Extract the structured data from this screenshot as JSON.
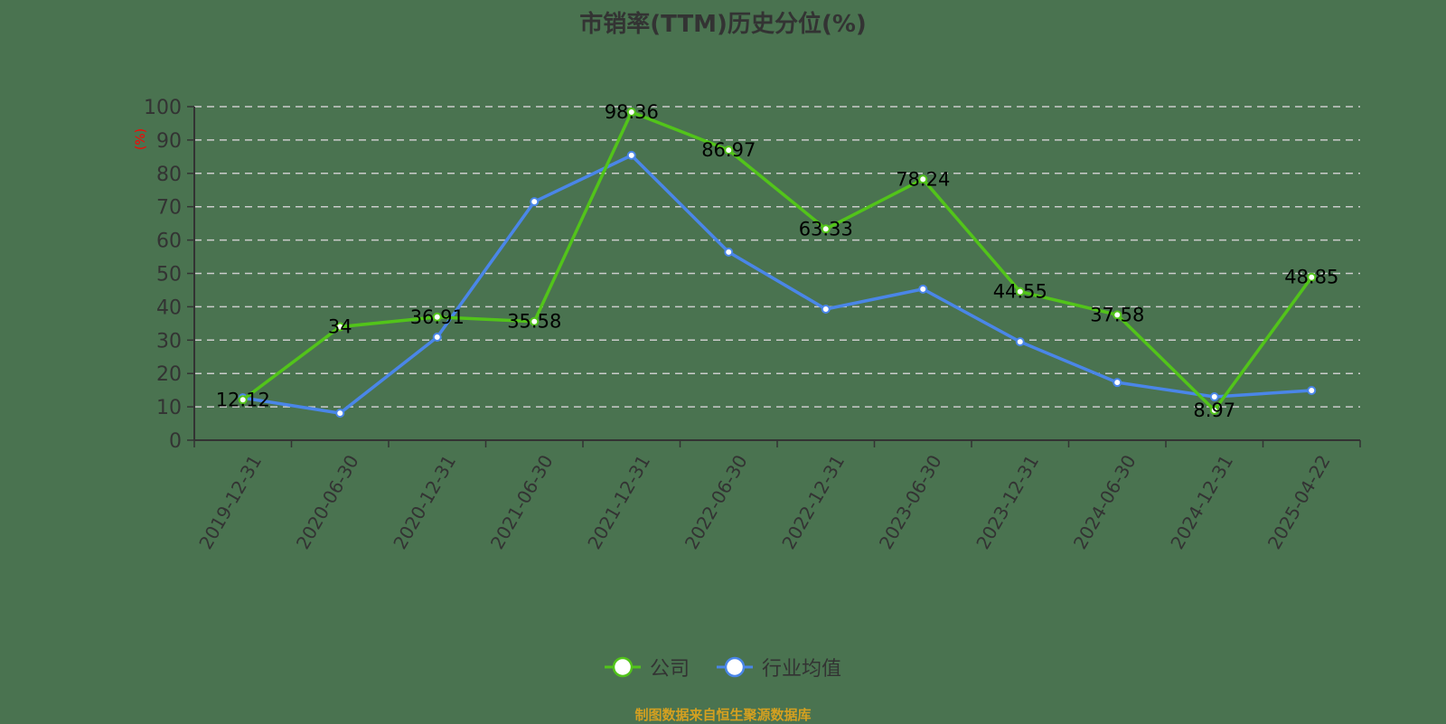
{
  "title": "市销率(TTM)历史分位(%)",
  "source_note": "制图数据来自恒生聚源数据库",
  "colors": {
    "background": "#4a7350",
    "company": "#52c41a",
    "industry": "#4a86e8",
    "axis": "#333333",
    "grid": "#cccccc",
    "unit_label": "#ff0000",
    "source_note": "#d4a020"
  },
  "legend": [
    {
      "name": "公司",
      "color": "#52c41a"
    },
    {
      "name": "行业均值",
      "color": "#4a86e8"
    }
  ],
  "chart_data": {
    "type": "line",
    "title": "市销率(TTM)历史分位(%)",
    "xlabel": "",
    "ylabel": "(%)",
    "ylim": [
      0,
      100
    ],
    "yticks": [
      0,
      10,
      20,
      30,
      40,
      50,
      60,
      70,
      80,
      90,
      100
    ],
    "grid": true,
    "legend_position": "bottom",
    "categories": [
      "2019-12-31",
      "2020-06-30",
      "2020-12-31",
      "2021-06-30",
      "2021-12-31",
      "2022-06-30",
      "2022-12-31",
      "2023-06-30",
      "2023-12-31",
      "2024-06-30",
      "2024-12-31",
      "2025-04-22"
    ],
    "series": [
      {
        "name": "公司",
        "color": "#52c41a",
        "show_labels": true,
        "labels": [
          "12.12",
          "34",
          "36.91",
          "35.58",
          "98.36",
          "86.97",
          "63.33",
          "78.24",
          "44.55",
          "37.58",
          "8.97",
          "48.85"
        ],
        "values": [
          12.12,
          34,
          36.91,
          35.58,
          98.36,
          86.97,
          63.33,
          78.24,
          44.55,
          37.58,
          8.97,
          48.85
        ]
      },
      {
        "name": "行业均值",
        "color": "#4a86e8",
        "show_labels": false,
        "values": [
          12.7,
          8.1,
          30.9,
          71.5,
          85.4,
          56.4,
          39.3,
          45.3,
          29.5,
          17.3,
          13.0,
          14.9
        ]
      }
    ]
  }
}
